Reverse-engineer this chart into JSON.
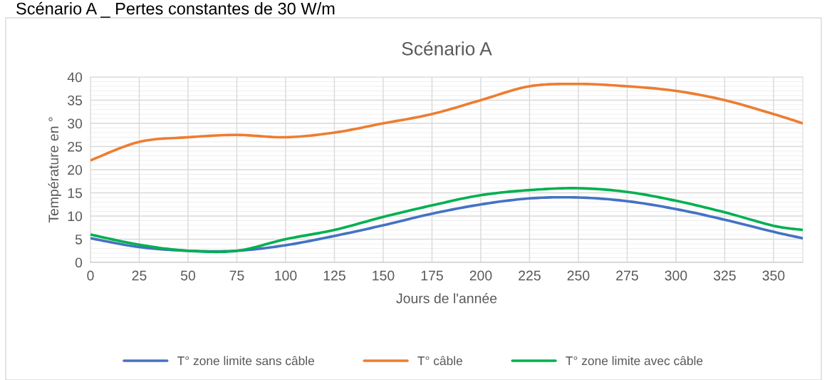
{
  "chart_data": {
    "type": "line",
    "title": "Scénario A",
    "xlabel": "Jours de l'année",
    "ylabel": "Température en °",
    "annotations": [
      "Scénario A _ Pertes constantes de 30 W/m"
    ],
    "x": [
      0,
      25,
      50,
      75,
      100,
      125,
      150,
      175,
      200,
      225,
      250,
      275,
      300,
      325,
      350,
      365
    ],
    "series": [
      {
        "name": "T° zone limite sans câble",
        "color": "#4472c4",
        "values": [
          5.2,
          3.3,
          2.5,
          2.5,
          3.7,
          5.7,
          8,
          10.5,
          12.5,
          13.8,
          14,
          13.2,
          11.5,
          9.2,
          6.6,
          5.2
        ]
      },
      {
        "name": "T° câble",
        "color": "#ed7d31",
        "values": [
          22,
          26,
          27,
          27.5,
          27,
          28,
          30,
          32,
          35,
          38,
          38.5,
          38,
          37,
          35,
          32,
          30
        ]
      },
      {
        "name": "T° zone limite avec câble",
        "color": "#00b050",
        "values": [
          6,
          3.8,
          2.5,
          2.5,
          5,
          7,
          9.8,
          12.3,
          14.5,
          15.6,
          16,
          15.2,
          13.3,
          10.8,
          7.9,
          7
        ]
      }
    ],
    "xlim": [
      0,
      365
    ],
    "xticks": [
      0,
      25,
      50,
      75,
      100,
      125,
      150,
      175,
      200,
      225,
      250,
      275,
      300,
      325,
      350
    ],
    "ylim": [
      0,
      40
    ],
    "yticks": [
      0,
      5,
      10,
      15,
      20,
      25,
      30,
      35,
      40
    ],
    "grid": true,
    "legend": "bottom",
    "marker": "none",
    "line_style": "solid"
  }
}
